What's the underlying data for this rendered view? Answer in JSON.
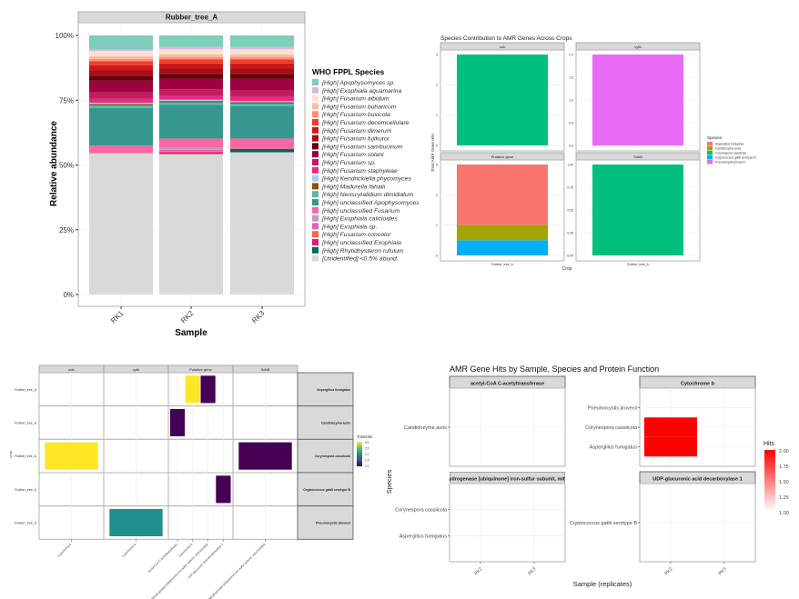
{
  "chart_data": [
    {
      "type": "bar",
      "stacked": true,
      "facet": "Rubber_tree_A",
      "xlabel": "Sample",
      "ylabel": "Relative abundance",
      "categories": [
        "RK1",
        "RK2",
        "RK3"
      ],
      "yticks": [
        "0%",
        "25%",
        "50%",
        "75%",
        "100%"
      ],
      "ylim": [
        0,
        100
      ],
      "legend_title": "WHO FPPL Species",
      "legend_position": "right",
      "series": [
        {
          "name": "[High] Apophysomyces sp.",
          "color": "#7fcdbb",
          "values": [
            5.5,
            4.5,
            4.5
          ]
        },
        {
          "name": "[High] Exophiala aquamarina",
          "color": "#d9b8e0",
          "values": [
            0.5,
            0.8,
            0.8
          ]
        },
        {
          "name": "[High] Fusarium albidum",
          "color": "#fde0d2",
          "values": [
            2.0,
            2.0,
            2.0
          ]
        },
        {
          "name": "[High] Fusarium buharicum",
          "color": "#fcbba1",
          "values": [
            1.0,
            1.0,
            1.0
          ]
        },
        {
          "name": "[High] Fusarium buxicola",
          "color": "#fc9272",
          "values": [
            1.0,
            1.0,
            1.0
          ]
        },
        {
          "name": "[High] Fusarium decemcellulare",
          "color": "#ef3b2c",
          "values": [
            1.5,
            1.5,
            1.5
          ]
        },
        {
          "name": "[High] Fusarium dimerum",
          "color": "#cb181d",
          "values": [
            2.0,
            2.0,
            2.0
          ]
        },
        {
          "name": "[High] Fusarium fujikuroi",
          "color": "#a50f15",
          "values": [
            2.0,
            2.0,
            2.0
          ]
        },
        {
          "name": "[High] Fusarium sambucinum",
          "color": "#67000d",
          "values": [
            2.0,
            2.0,
            2.0
          ]
        },
        {
          "name": "[High] Fusarium solani",
          "color": "#9e0142",
          "values": [
            4.5,
            4.0,
            4.5
          ]
        },
        {
          "name": "[High] Fusarium sp.",
          "color": "#c51b5d",
          "values": [
            2.5,
            2.5,
            2.5
          ]
        },
        {
          "name": "[High] Fusarium staphyleae",
          "color": "#e7298a",
          "values": [
            1.5,
            1.5,
            1.5
          ]
        },
        {
          "name": "[High] Kendrickiella phycomyces",
          "color": "#a6cee3",
          "values": [
            0.5,
            0.5,
            0.5
          ]
        },
        {
          "name": "[High] Madurella fahalii",
          "color": "#8c510a",
          "values": [
            0.5,
            0.5,
            0.5
          ]
        },
        {
          "name": "[High] Neoscytalidium dimidiatum",
          "color": "#5ab4ac",
          "values": [
            1.0,
            1.0,
            1.0
          ]
        },
        {
          "name": "[High] unclassified Apophysomyces",
          "color": "#35978f",
          "values": [
            14.5,
            13.0,
            12.5
          ]
        },
        {
          "name": "[High] unclassified Fusarium",
          "color": "#f768a1",
          "values": [
            3.0,
            3.5,
            4.0
          ]
        },
        {
          "name": "[High] Exophiala calicioides",
          "color": "#c994c7",
          "values": [
            0,
            0.8,
            0
          ]
        },
        {
          "name": "[High] Exophiala sp.",
          "color": "#df65b0",
          "values": [
            0,
            0.5,
            0
          ]
        },
        {
          "name": "[High] Fusarium concolor",
          "color": "#fb6a4a",
          "values": [
            0,
            0.5,
            0
          ]
        },
        {
          "name": "[High] unclassified Exophiala",
          "color": "#dd1c77",
          "values": [
            0,
            0.7,
            0
          ]
        },
        {
          "name": "[High] Rhytidhysteron rufulum",
          "color": "#01665e",
          "values": [
            0,
            0,
            1.3
          ]
        },
        {
          "name": "[Unidentified] <0.5% abund.",
          "color": "#d9d9d9",
          "values": [
            54.5,
            54.2,
            54.9
          ]
        }
      ]
    },
    {
      "type": "bar",
      "stacked": true,
      "title": "Species Contribution to AMR Genes Across Crops",
      "xlabel": "Crop",
      "ylabel": "Total AMR Gene Hits",
      "legend_title": "Species",
      "legend_position": "right",
      "legend": [
        {
          "name": "Aspergillus fumigatus",
          "color": "#f8766d"
        },
        {
          "name": "Candidozyma auris",
          "color": "#a3a500"
        },
        {
          "name": "Corynespora cassiicola",
          "color": "#00bf7d"
        },
        {
          "name": "Cryptococcus gattii serotype B",
          "color": "#00b0f6"
        },
        {
          "name": "Pneumocystis jirovecii",
          "color": "#e76bf3"
        }
      ],
      "facets": [
        {
          "label": "cob",
          "category": "Rubber_tree_A",
          "ylim": [
            0,
            3
          ],
          "yticks": [
            "0",
            "1",
            "2",
            "3"
          ],
          "stack": [
            {
              "species": "Corynespora cassiicola",
              "value": 3
            }
          ]
        },
        {
          "label": "cytb",
          "category": "Rubber_tree_A",
          "ylim": [
            0,
            2
          ],
          "yticks": [
            "0.0",
            "0.5",
            "1.0",
            "1.5",
            "2.0"
          ],
          "stack": [
            {
              "species": "Pneumocystis jirovecii",
              "value": 2
            }
          ]
        },
        {
          "label": "Putative gene",
          "category": "Rubber_tree_A",
          "ylim": [
            0,
            6
          ],
          "yticks": [
            "0",
            "2",
            "4",
            "6"
          ],
          "stack": [
            {
              "species": "Cryptococcus gattii serotype B",
              "value": 1
            },
            {
              "species": "Candidozyma auris",
              "value": 1
            },
            {
              "species": "Aspergillus fumigatus",
              "value": 4
            }
          ]
        },
        {
          "label": "SdhB",
          "category": "Rubber_tree_A",
          "ylim": [
            0,
            1
          ],
          "yticks": [
            "0.00",
            "0.25",
            "0.50",
            "0.75",
            "1.00"
          ],
          "stack": [
            {
              "species": "Corynespora cassiicola",
              "value": 1
            }
          ]
        }
      ]
    },
    {
      "type": "heatmap",
      "ylabel": "crop",
      "ytick": "Rubber_tree_A",
      "legend_title": "TotalHits",
      "legend_ticks": [
        "1.0",
        "1.5",
        "2.0",
        "2.5",
        "3.0"
      ],
      "range": [
        1,
        3
      ],
      "colorscale": [
        "#440154",
        "#3b528b",
        "#21908c",
        "#5dc963",
        "#fde725"
      ],
      "columns": [
        {
          "label": "cob",
          "x": [
            "Cytochrome b"
          ]
        },
        {
          "label": "cytb",
          "x": [
            "Cytochrome b"
          ]
        },
        {
          "label": "Putative gene",
          "x": [
            "acetyl-CoA C-acetyltransferase",
            "Cytochrome b",
            "NADH dehydrogenase [ubiquinone] iron-sulfur subunit, mitochondrial",
            "UDP-glucuronic acid decarboxylase 1"
          ]
        },
        {
          "label": "SdhB",
          "x": [
            "succinate dehydrogenase [ubiquinone] iron-sulfur subunit, mitochondrial"
          ]
        }
      ],
      "rows": [
        "Aspergillus fumigatus",
        "Candidozyma auris",
        "Corynespora cassiicola",
        "Cryptococcus gattii serotype B",
        "Pneumocystis jirovecii"
      ],
      "cells": [
        {
          "column": 0,
          "x": 0,
          "row": 2,
          "value": 3
        },
        {
          "column": 1,
          "x": 0,
          "row": 4,
          "value": 2
        },
        {
          "column": 2,
          "x": 0,
          "row": 1,
          "value": 1
        },
        {
          "column": 2,
          "x": 1,
          "row": 0,
          "value": 3
        },
        {
          "column": 2,
          "x": 2,
          "row": 0,
          "value": 1
        },
        {
          "column": 2,
          "x": 3,
          "row": 3,
          "value": 1
        },
        {
          "column": 3,
          "x": 0,
          "row": 2,
          "value": 1
        }
      ]
    },
    {
      "type": "heatmap",
      "title": "AMR Gene Hits by Sample, Species and Protein Function",
      "xlabel": "Sample (replicates)",
      "ylabel": "Species",
      "legend_title": "Hits",
      "legend_ticks": [
        "1.00",
        "1.25",
        "1.50",
        "1.75",
        "2.00"
      ],
      "range": [
        1,
        2
      ],
      "colorscale": [
        "#ffffff",
        "#ff0000"
      ],
      "x": [
        "RK2",
        "RK3"
      ],
      "panels": [
        {
          "label": "acetyl-CoA C-acetyltransferase",
          "species": [
            "Candidozyma auris"
          ],
          "cells": []
        },
        {
          "label": "Cytochrome b",
          "species": [
            "Aspergillus fumigatus",
            "Corynespora cassiicola",
            "Pneumocystis jirovecii"
          ],
          "cells": [
            {
              "x": "RK2",
              "species": "Aspergillus fumigatus",
              "value": 2
            },
            {
              "x": "RK2",
              "species": "Corynespora cassiicola",
              "value": 2
            }
          ]
        },
        {
          "label": "NADH dehydrogenase [ubiquinone] iron-sulfur subunit, mitochondrial",
          "species": [
            "Aspergillus fumigatus",
            "Corynespora cassiicola"
          ],
          "cells": []
        },
        {
          "label": "UDP-glucuronic acid decarboxylase 1",
          "species": [
            "Cryptococcus gattii serotype B"
          ],
          "cells": []
        }
      ]
    }
  ]
}
